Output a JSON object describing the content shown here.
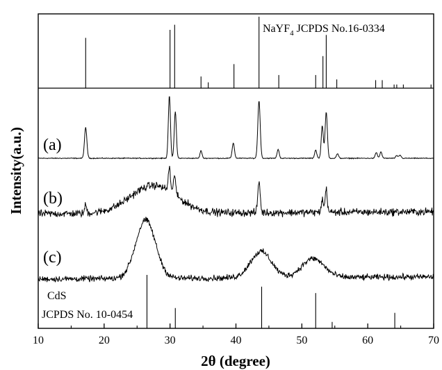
{
  "chart_data": {
    "type": "line",
    "xlabel": "2θ (degree)",
    "ylabel": "Intensity(a.u.)",
    "xlim": [
      10,
      70
    ],
    "x_ticks": [
      10,
      20,
      30,
      40,
      50,
      60,
      70
    ],
    "x_tick_labels": [
      "10",
      "20",
      "30",
      "40",
      "50",
      "60",
      "70"
    ],
    "grid": false,
    "reference_patterns": [
      {
        "label_main": "NaYF",
        "label_sub": "4",
        "label_rest": " JCPDS No.16-0334",
        "position": "top",
        "lines": [
          {
            "x": 17.2,
            "h": 0.69
          },
          {
            "x": 30.0,
            "h": 0.8
          },
          {
            "x": 30.7,
            "h": 0.87
          },
          {
            "x": 34.7,
            "h": 0.16
          },
          {
            "x": 35.8,
            "h": 0.08
          },
          {
            "x": 39.7,
            "h": 0.33
          },
          {
            "x": 43.5,
            "h": 0.98
          },
          {
            "x": 46.5,
            "h": 0.18
          },
          {
            "x": 52.1,
            "h": 0.18
          },
          {
            "x": 53.2,
            "h": 0.44
          },
          {
            "x": 53.7,
            "h": 0.73
          },
          {
            "x": 55.3,
            "h": 0.12
          },
          {
            "x": 61.2,
            "h": 0.11
          },
          {
            "x": 62.2,
            "h": 0.11
          },
          {
            "x": 64.0,
            "h": 0.05
          },
          {
            "x": 64.4,
            "h": 0.05
          },
          {
            "x": 65.4,
            "h": 0.05
          },
          {
            "x": 69.6,
            "h": 0.05
          }
        ]
      },
      {
        "label_line1": "CdS",
        "label_line2": "JCPDS No. 10-0454",
        "position": "bottom",
        "lines": [
          {
            "x": 26.5,
            "h": 1.0
          },
          {
            "x": 30.8,
            "h": 0.38
          },
          {
            "x": 43.9,
            "h": 0.78
          },
          {
            "x": 52.1,
            "h": 0.66
          },
          {
            "x": 54.6,
            "h": 0.12
          },
          {
            "x": 64.1,
            "h": 0.29
          }
        ]
      }
    ],
    "series": [
      {
        "name": "(a)",
        "peaks": [
          {
            "x": 17.2,
            "h": 0.48,
            "w": 0.18
          },
          {
            "x": 29.9,
            "h": 0.98,
            "w": 0.16
          },
          {
            "x": 30.8,
            "h": 0.73,
            "w": 0.16
          },
          {
            "x": 34.7,
            "h": 0.12,
            "w": 0.15
          },
          {
            "x": 39.6,
            "h": 0.24,
            "w": 0.17
          },
          {
            "x": 43.5,
            "h": 0.9,
            "w": 0.18
          },
          {
            "x": 46.4,
            "h": 0.14,
            "w": 0.16
          },
          {
            "x": 52.1,
            "h": 0.13,
            "w": 0.16
          },
          {
            "x": 53.1,
            "h": 0.51,
            "w": 0.16
          },
          {
            "x": 53.7,
            "h": 0.72,
            "w": 0.17
          },
          {
            "x": 55.4,
            "h": 0.07,
            "w": 0.16
          },
          {
            "x": 61.3,
            "h": 0.09,
            "w": 0.16
          },
          {
            "x": 62.0,
            "h": 0.1,
            "w": 0.16
          },
          {
            "x": 64.4,
            "h": 0.04,
            "w": 0.16
          },
          {
            "x": 64.9,
            "h": 0.05,
            "w": 0.16
          }
        ],
        "noise": 0.01
      },
      {
        "name": "(b)",
        "broad": [
          {
            "x": 27.5,
            "h": 0.4,
            "w": 3.5
          }
        ],
        "peaks": [
          {
            "x": 17.2,
            "h": 0.12,
            "w": 0.15
          },
          {
            "x": 29.9,
            "h": 0.35,
            "w": 0.16
          },
          {
            "x": 30.7,
            "h": 0.3,
            "w": 0.16
          },
          {
            "x": 43.5,
            "h": 0.45,
            "w": 0.18
          },
          {
            "x": 53.1,
            "h": 0.18,
            "w": 0.16
          },
          {
            "x": 53.7,
            "h": 0.33,
            "w": 0.17
          }
        ],
        "noise": 0.08
      },
      {
        "name": "(c)",
        "broad": [
          {
            "x": 26.3,
            "h": 0.8,
            "w": 1.5
          },
          {
            "x": 43.8,
            "h": 0.36,
            "w": 1.6
          },
          {
            "x": 51.7,
            "h": 0.26,
            "w": 1.7
          }
        ],
        "noise": 0.06
      }
    ]
  }
}
